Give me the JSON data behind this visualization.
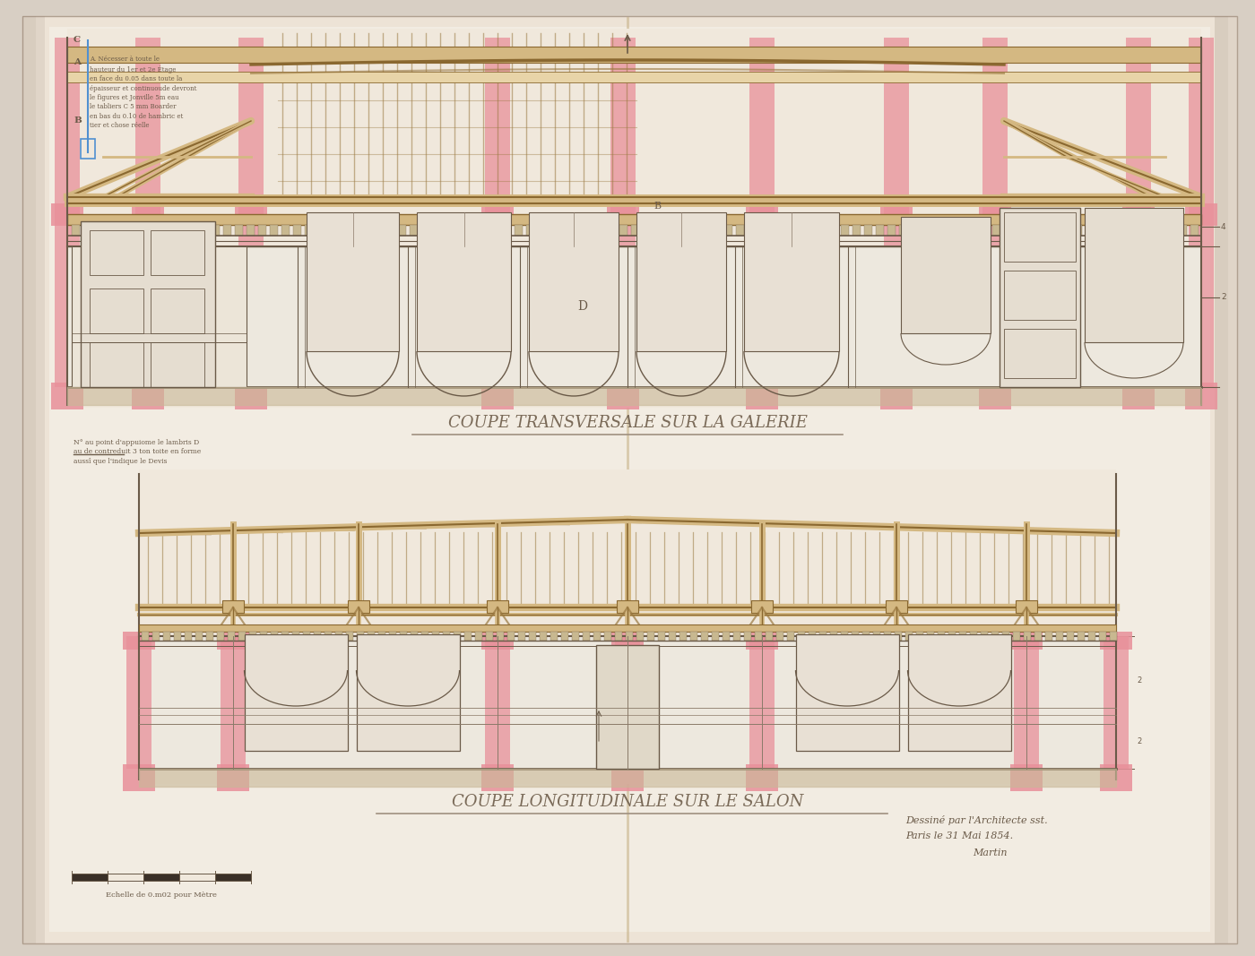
{
  "bg_color": "#d8cfc4",
  "paper_color": "#ede3d6",
  "paper_inner": "#f2ece2",
  "line_color": "#6a5a48",
  "line_thin": "#8a7a68",
  "pink": "#e8909a",
  "pink_light": "#f0b0b8",
  "wood_fill": "#d4b882",
  "wood_light": "#e8d4a8",
  "wood_dark": "#9a7840",
  "wood_outline": "#8a6830",
  "gray_line": "#c0b8a8",
  "title1": "COUPE TRANSVERSALE SUR LA GALERIE",
  "title2": "COUPE LONGITUDINALE SUR LE SALON",
  "sig1": "Dessiné par l'Architecte sst.",
  "sig2": "Paris le 31 Mai 1854.",
  "sig3": "Martin",
  "scale_label": "Echelle de 0.m02 pour Mètre",
  "note": "N° au point d'appuiome le lambris D\nau de contreduit 3 ton toite en forme\naussî que l'indique le Devis",
  "legend": "A. Nécesser à toute le\nhauteur du 1er et 2e Étage\nen face du 0.05 dans toute la\népaisseur et continuoude devront\nle figures et Jonville 5m eau\nle tabliers C 5 mm Boarder\nen bas du 0.10 de hambric et\ntier et chose réelle",
  "fig_width": 14.0,
  "fig_height": 10.67,
  "dpi": 100
}
